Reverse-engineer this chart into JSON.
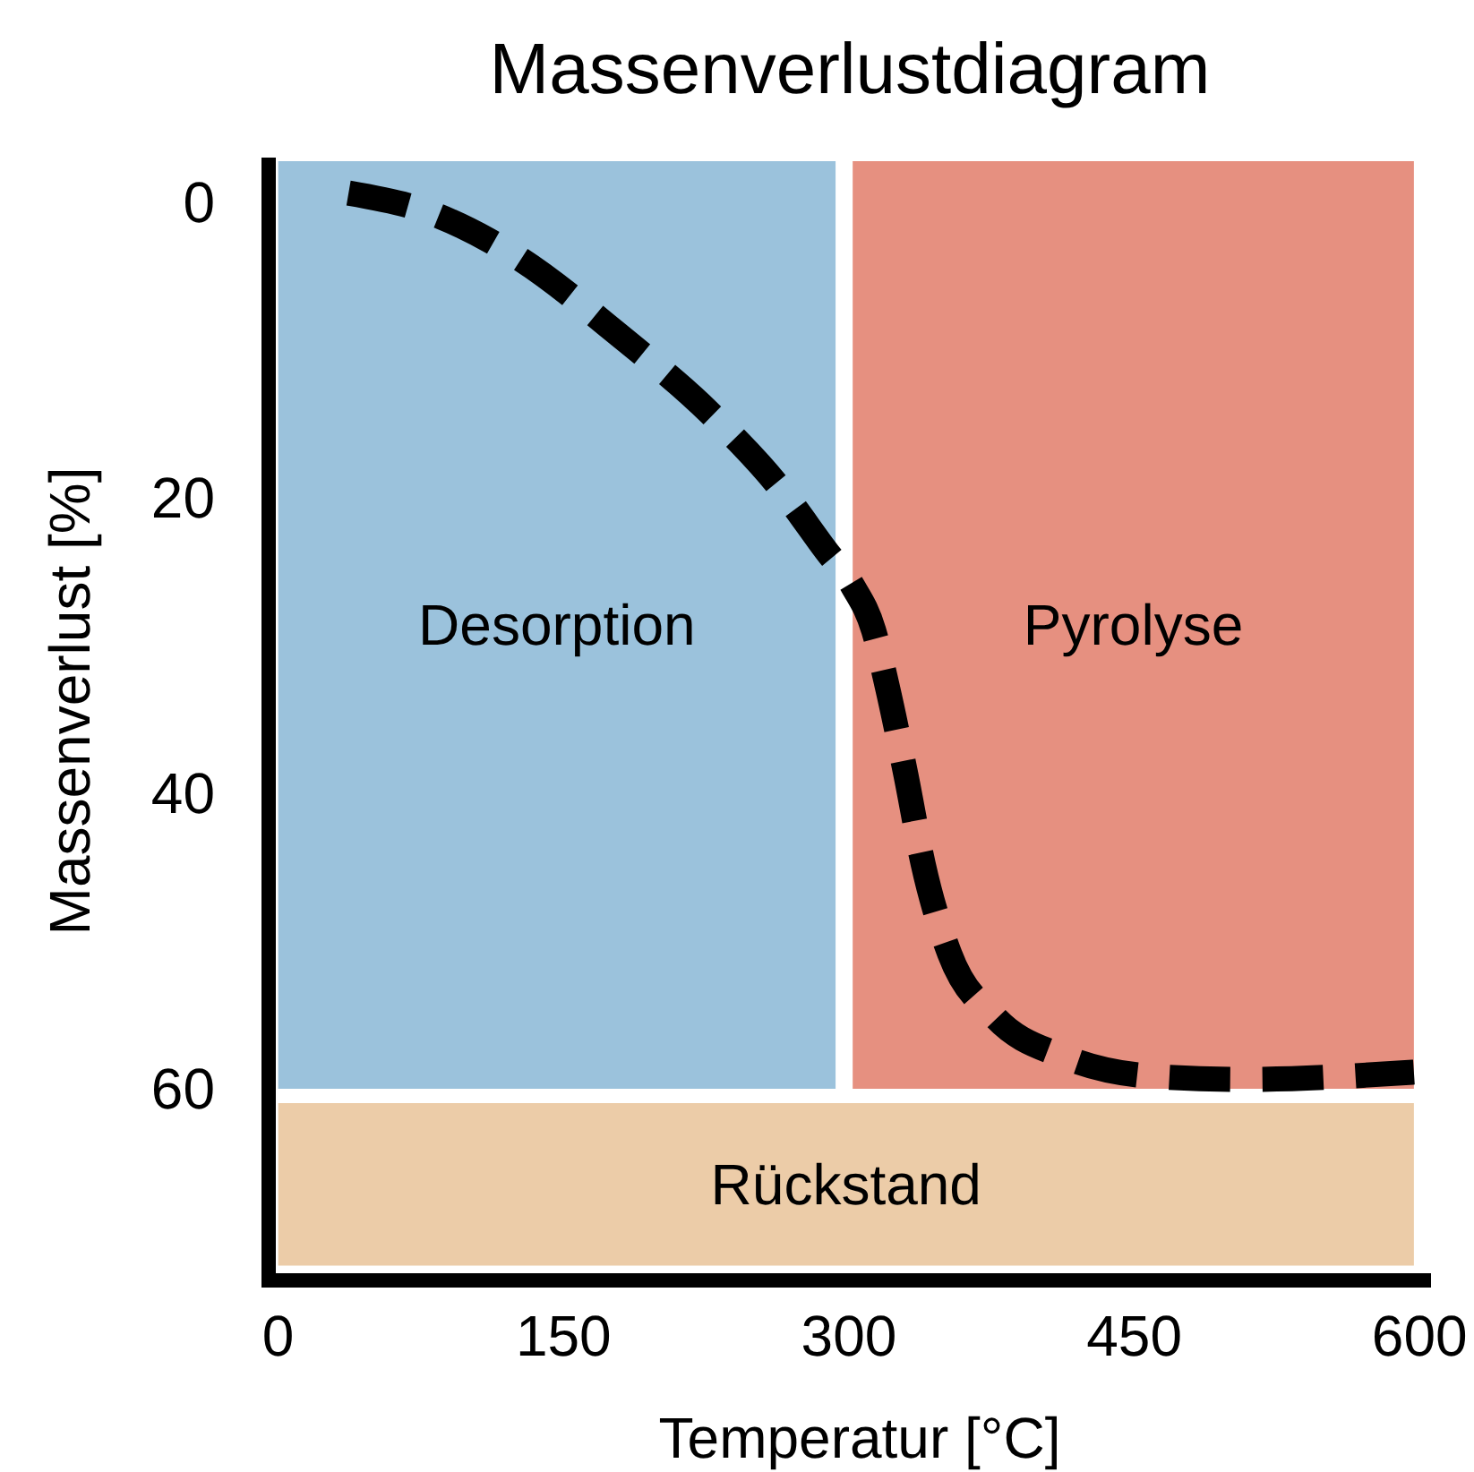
{
  "chart_data": {
    "type": "line",
    "title": "Massenverlustdiagram",
    "xlabel": "Temperatur [°C]",
    "ylabel": "Massenverlust [%]",
    "x": [
      37,
      77,
      124,
      180,
      227,
      264,
      288,
      302,
      313,
      320,
      330,
      339,
      353,
      377,
      414,
      461,
      508,
      597
    ],
    "series": [
      {
        "color": "#000000",
        "values": [
          -0.6,
          0.6,
          3.6,
          9.1,
          14.3,
          19.4,
          23.6,
          26,
          29,
          32.7,
          38.8,
          44.8,
          50.9,
          55.2,
          57.9,
          59.2,
          59.4,
          58.9
        ]
      }
    ],
    "xlim": [
      -5,
      606
    ],
    "ylim": [
      73,
      -3
    ],
    "xticks": [
      0,
      150,
      300,
      450,
      600
    ],
    "yticks": [
      0,
      20,
      40,
      60
    ],
    "bands": [
      {
        "axis": "x",
        "from": 0,
        "to": 293,
        "label": "Desorption",
        "color": "#9bc2dc"
      },
      {
        "axis": "x",
        "from": 302,
        "to": 597,
        "label": "Pyrolyse",
        "color": "#e69080"
      },
      {
        "axis": "y",
        "from": 61,
        "to": 72,
        "label": "Rückstand",
        "color": "#eccca8"
      }
    ],
    "grid": false,
    "marker": "none",
    "line_style": "dashed"
  }
}
